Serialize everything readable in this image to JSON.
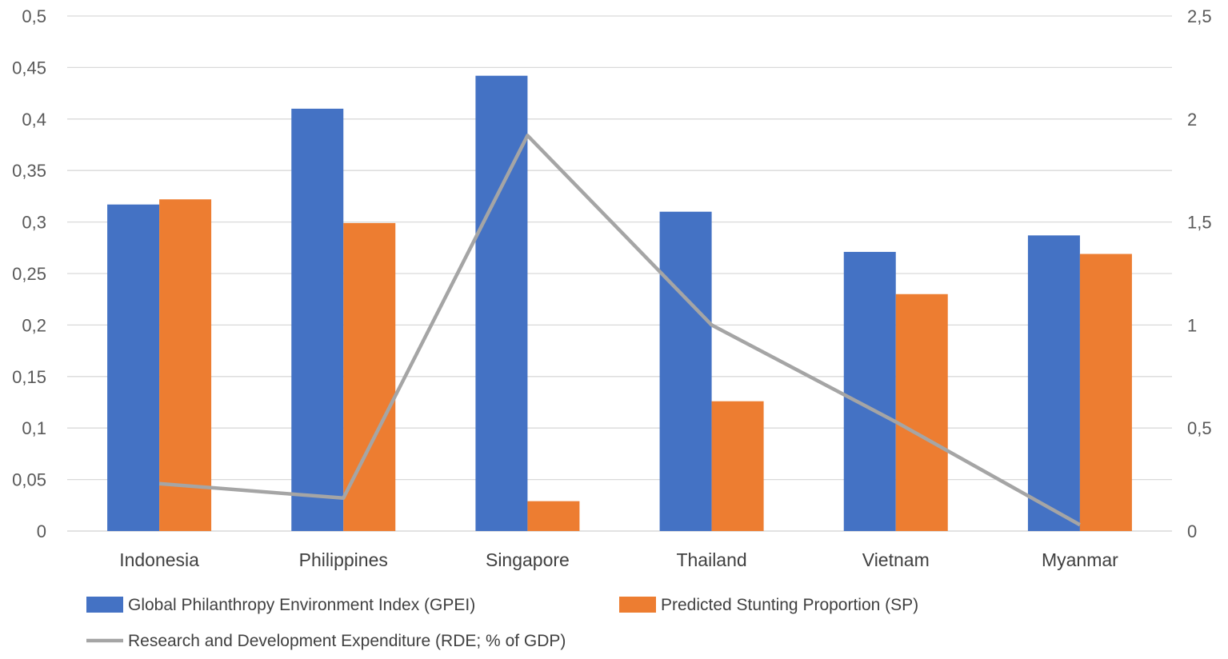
{
  "chart_data": {
    "type": "bar",
    "categories": [
      "Indonesia",
      "Philippines",
      "Singapore",
      "Thailand",
      "Vietnam",
      "Myanmar"
    ],
    "series": [
      {
        "name": "Global Philanthropy Environment Index (GPEI)",
        "type": "bar",
        "axis": "left",
        "color": "#4472C4",
        "values": [
          0.317,
          0.41,
          0.442,
          0.31,
          0.271,
          0.287
        ]
      },
      {
        "name": "Predicted Stunting Proportion (SP)",
        "type": "bar",
        "axis": "left",
        "color": "#ED7D31",
        "values": [
          0.322,
          0.299,
          0.029,
          0.126,
          0.23,
          0.269
        ]
      },
      {
        "name": "Research and Development Expenditure (RDE; % of GDP)",
        "type": "line",
        "axis": "right",
        "color": "#A5A5A5",
        "values": [
          0.23,
          0.16,
          1.92,
          1.0,
          0.53,
          0.03
        ]
      }
    ],
    "y_left": {
      "min": 0,
      "max": 0.5,
      "ticks": [
        "0",
        "0,05",
        "0,1",
        "0,15",
        "0,2",
        "0,25",
        "0,3",
        "0,35",
        "0,4",
        "0,45",
        "0,5"
      ]
    },
    "y_right": {
      "min": 0,
      "max": 2.5,
      "ticks": [
        "0",
        "0,5",
        "1",
        "1,5",
        "2",
        "2,5"
      ]
    },
    "grid": true,
    "legend_position": "bottom"
  }
}
